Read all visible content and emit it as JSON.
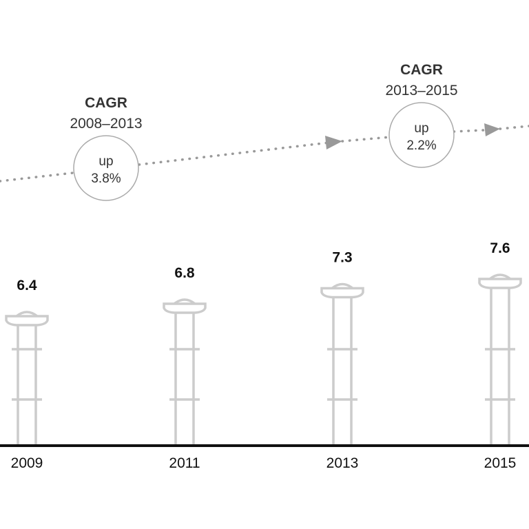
{
  "chart_data": {
    "type": "bar",
    "categories": [
      "2009",
      "2011",
      "2013",
      "2015"
    ],
    "values": [
      6.4,
      6.8,
      7.3,
      7.6
    ],
    "value_labels": [
      "6.4",
      "6.8",
      "7.3",
      "7.6"
    ],
    "title": "",
    "xlabel": "",
    "ylabel": "",
    "grid": false,
    "annotations": [
      {
        "title": "CAGR",
        "period": "2008–2013",
        "direction": "up",
        "rate": "3.8%"
      },
      {
        "title": "CAGR",
        "period": "2013–2015",
        "direction": "up",
        "rate": "2.2%"
      }
    ]
  },
  "colors": {
    "pillar": "#cccccc",
    "trend": "#999999",
    "baseline": "#111111",
    "text": "#333333"
  }
}
